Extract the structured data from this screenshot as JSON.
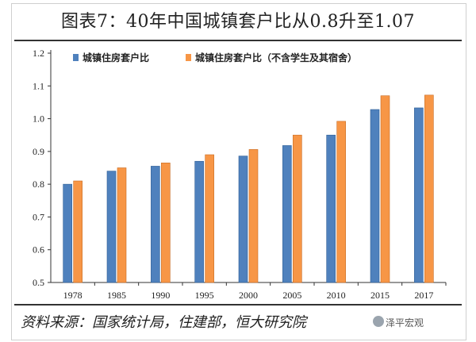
{
  "title": "图表7：40年中国城镇套户比从0.8升至1.07",
  "source": "资料来源：国家统计局，住建部，恒大研究院",
  "watermark": "泽平宏观",
  "colors": {
    "series1": "#4f81bd",
    "series2": "#f79646"
  },
  "chart_data": {
    "type": "bar",
    "categories": [
      "1978",
      "1985",
      "1990",
      "1995",
      "2000",
      "2005",
      "2010",
      "2015",
      "2017"
    ],
    "series": [
      {
        "name": "城镇住房套户比",
        "values": [
          0.8,
          0.84,
          0.855,
          0.87,
          0.886,
          0.918,
          0.95,
          1.028,
          1.033
        ]
      },
      {
        "name": "城镇住房套户比（不含学生及其宿舍）",
        "values": [
          0.81,
          0.85,
          0.865,
          0.89,
          0.906,
          0.95,
          0.992,
          1.07,
          1.072
        ]
      }
    ],
    "ylim": [
      0.5,
      1.2
    ],
    "yticks": [
      "0.5",
      "0.6",
      "0.7",
      "0.8",
      "0.9",
      "1.0",
      "1.1",
      "1.2"
    ],
    "xlabel": "",
    "ylabel": "",
    "grid": false,
    "legend": "top-left"
  }
}
